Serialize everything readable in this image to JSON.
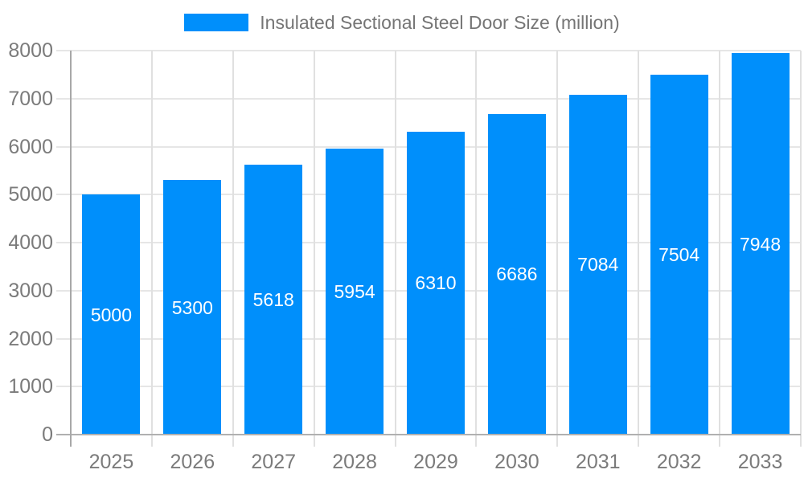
{
  "chart_data": {
    "type": "bar",
    "title": "Insulated Sectional Steel Door Size (million)",
    "categories": [
      "2025",
      "2026",
      "2027",
      "2028",
      "2029",
      "2030",
      "2031",
      "2032",
      "2033"
    ],
    "values": [
      5000,
      5300,
      5618,
      5954,
      6310,
      6686,
      7084,
      7504,
      7948
    ],
    "series": [
      {
        "name": "Insulated Sectional Steel Door Size (million)",
        "values": [
          5000,
          5300,
          5618,
          5954,
          6310,
          6686,
          7084,
          7504,
          7948
        ]
      }
    ],
    "xlabel": "",
    "ylabel": "",
    "ylim": [
      0,
      8000
    ],
    "ytick_step": 1000,
    "yticks": [
      0,
      1000,
      2000,
      3000,
      4000,
      5000,
      6000,
      7000,
      8000
    ],
    "grid": true,
    "data_labels": true,
    "legend_position": "top"
  },
  "colors": {
    "bar": "#008ffb",
    "bar_value_label": "#ffffff",
    "gridline": "#e6e6e6",
    "category_line": "#e0e0e0",
    "x_axis_line": "#b0b0b0",
    "y_axis_line": "#a8a8a8",
    "tick_label": "#7b7b7b",
    "legend_text": "#757575",
    "background": "#ffffff"
  }
}
